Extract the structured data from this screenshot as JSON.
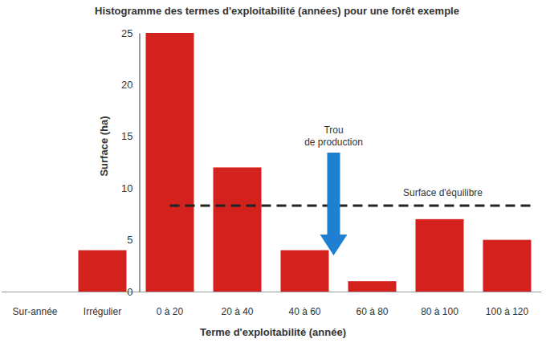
{
  "chart_data": {
    "type": "bar",
    "title": "Histogramme des termes d'exploitabilité (années) pour une forêt exemple",
    "x_label": "Terme d'exploitabilité (année)",
    "y_label": "Surface (ha)",
    "categories": [
      "Sur-année",
      "Irrégulier",
      "0 à 20",
      "20 à 40",
      "40 à 60",
      "60 à 80",
      "80 à 100",
      "100 à 120"
    ],
    "values": [
      0,
      4,
      25,
      12,
      4,
      1,
      7,
      5
    ],
    "color": "#d3221e",
    "ylim": [
      0,
      25
    ],
    "yticks": [
      0,
      5,
      10,
      15,
      20,
      25
    ],
    "grid": false,
    "reference_line": {
      "label": "Surface d'équilibre",
      "value": 8.3
    },
    "annotation": {
      "text": "Trou de production"
    }
  }
}
